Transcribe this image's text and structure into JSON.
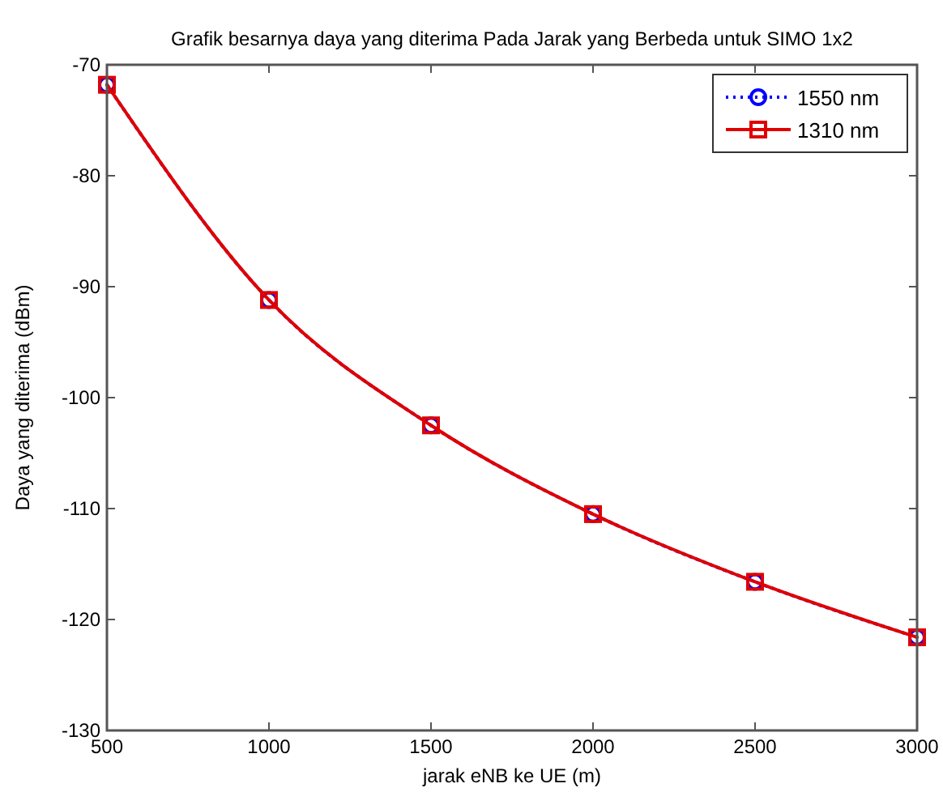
{
  "chart_data": {
    "type": "line",
    "title": "Grafik besarnya daya yang diterima Pada Jarak yang Berbeda untuk SIMO 1x2",
    "xlabel": "jarak eNB ke UE (m)",
    "ylabel": "Daya yang diterima (dBm)",
    "x": [
      500,
      1000,
      1500,
      2000,
      2500,
      3000
    ],
    "series": [
      {
        "name": "1550 nm",
        "color": "#0000ff",
        "marker": "circle",
        "line_style": "dotted",
        "values": [
          -71.8,
          -91.2,
          -102.5,
          -110.5,
          -116.6,
          -121.6
        ]
      },
      {
        "name": "1310 nm",
        "color": "#e00000",
        "marker": "square",
        "line_style": "solid",
        "values": [
          -71.8,
          -91.2,
          -102.5,
          -110.5,
          -116.6,
          -121.6
        ]
      }
    ],
    "xlim": [
      500,
      3000
    ],
    "xticks": [
      500,
      1000,
      1500,
      2000,
      2500,
      3000
    ],
    "ylim": [
      -130,
      -70
    ],
    "yticks": [
      -130,
      -120,
      -110,
      -100,
      -90,
      -80,
      -70
    ],
    "grid": false,
    "legend": "top right"
  }
}
